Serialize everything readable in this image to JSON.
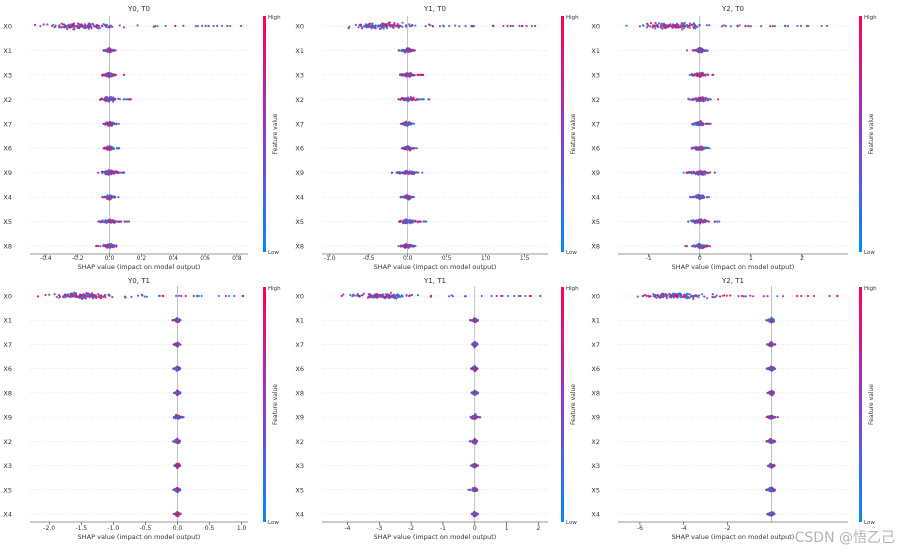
{
  "watermark": "CSDN @悟乙己",
  "colorbar": {
    "high": "High",
    "low": "Low",
    "label": "Feature value",
    "color_high": "#ff0052",
    "color_low": "#008bfb"
  },
  "chart_data": [
    {
      "type": "scatter",
      "title": "Y0, T0",
      "xlabel": "SHAP value (impact on model output)",
      "xlim": [
        -0.5,
        0.87
      ],
      "xticks": [
        -0.4,
        -0.2,
        0.0,
        0.2,
        0.4,
        0.6,
        0.8
      ],
      "features": [
        "X0",
        "X1",
        "X3",
        "X2",
        "X7",
        "X6",
        "X9",
        "X4",
        "X5",
        "X8"
      ],
      "ranges": [
        [
          -0.47,
          0.86
        ],
        [
          -0.04,
          0.04
        ],
        [
          -0.05,
          0.1
        ],
        [
          -0.06,
          0.14
        ],
        [
          -0.05,
          0.06
        ],
        [
          -0.05,
          0.06
        ],
        [
          -0.11,
          0.1
        ],
        [
          -0.05,
          0.06
        ],
        [
          -0.07,
          0.13
        ],
        [
          -0.09,
          0.05
        ]
      ]
    },
    {
      "type": "scatter",
      "title": "Y1, T0",
      "xlabel": "SHAP value (impact on model output)",
      "xlim": [
        -1.1,
        1.8
      ],
      "xticks": [
        -1.0,
        -0.5,
        0.0,
        0.5,
        1.0,
        1.5
      ],
      "features": [
        "X0",
        "X1",
        "X3",
        "X2",
        "X7",
        "X6",
        "X9",
        "X4",
        "X5",
        "X8"
      ],
      "ranges": [
        [
          -0.88,
          1.65
        ],
        [
          -0.12,
          0.1
        ],
        [
          -0.1,
          0.2
        ],
        [
          -0.12,
          0.3
        ],
        [
          -0.1,
          0.12
        ],
        [
          -0.1,
          0.12
        ],
        [
          -0.22,
          0.2
        ],
        [
          -0.1,
          0.1
        ],
        [
          -0.12,
          0.25
        ],
        [
          -0.15,
          0.1
        ]
      ]
    },
    {
      "type": "scatter",
      "title": "Y2, T0",
      "xlabel": "SHAP value (impact on model output)",
      "xlim": [
        -1.6,
        2.9
      ],
      "xticks": [
        -1,
        0,
        1,
        2
      ],
      "features": [
        "X0",
        "X1",
        "X3",
        "X2",
        "X7",
        "X6",
        "X9",
        "X4",
        "X5",
        "X8"
      ],
      "ranges": [
        [
          -1.45,
          2.55
        ],
        [
          -0.25,
          0.18
        ],
        [
          -0.2,
          0.32
        ],
        [
          -0.25,
          0.42
        ],
        [
          -0.2,
          0.22
        ],
        [
          -0.2,
          0.22
        ],
        [
          -0.35,
          0.32
        ],
        [
          -0.2,
          0.2
        ],
        [
          -0.25,
          0.38
        ],
        [
          -0.3,
          0.2
        ]
      ]
    },
    {
      "type": "scatter",
      "title": "Y0, T1",
      "xlabel": "SHAP value (impact on model output)",
      "xlim": [
        -2.3,
        1.1
      ],
      "xticks": [
        -2.0,
        -1.5,
        -1.0,
        -0.5,
        0.0,
        0.5,
        1.0
      ],
      "features": [
        "X0",
        "X1",
        "X7",
        "X6",
        "X8",
        "X9",
        "X2",
        "X3",
        "X5",
        "X4"
      ],
      "ranges": [
        [
          -2.2,
          1.05
        ],
        [
          -0.08,
          0.06
        ],
        [
          -0.06,
          0.05
        ],
        [
          -0.07,
          0.05
        ],
        [
          -0.06,
          0.05
        ],
        [
          -0.07,
          0.1
        ],
        [
          -0.08,
          0.05
        ],
        [
          -0.06,
          0.05
        ],
        [
          -0.08,
          0.05
        ],
        [
          -0.06,
          0.05
        ]
      ]
    },
    {
      "type": "scatter",
      "title": "Y1, T1",
      "xlabel": "SHAP value (impact on model output)",
      "xlim": [
        -4.8,
        2.3
      ],
      "xticks": [
        -4,
        -3,
        -2,
        -1,
        0,
        1,
        2
      ],
      "features": [
        "X0",
        "X1",
        "X7",
        "X6",
        "X8",
        "X9",
        "X2",
        "X3",
        "X5",
        "X4"
      ],
      "ranges": [
        [
          -4.3,
          2.1
        ],
        [
          -0.15,
          0.12
        ],
        [
          -0.12,
          0.1
        ],
        [
          -0.14,
          0.1
        ],
        [
          -0.12,
          0.1
        ],
        [
          -0.14,
          0.2
        ],
        [
          -0.16,
          0.1
        ],
        [
          -0.12,
          0.1
        ],
        [
          -0.2,
          0.1
        ],
        [
          -0.12,
          0.1
        ]
      ]
    },
    {
      "type": "scatter",
      "title": "Y2, T1",
      "xlabel": "SHAP value (impact on model output)",
      "xlim": [
        -7.0,
        3.5
      ],
      "xticks": [
        -6,
        -4,
        -2
      ],
      "features": [
        "X0",
        "X1",
        "X7",
        "X6",
        "X8",
        "X9",
        "X2",
        "X3",
        "X5",
        "X4"
      ],
      "ranges": [
        [
          -6.5,
          3.2
        ],
        [
          -0.25,
          0.2
        ],
        [
          -0.2,
          0.18
        ],
        [
          -0.22,
          0.18
        ],
        [
          -0.2,
          0.18
        ],
        [
          -0.22,
          0.3
        ],
        [
          -0.25,
          0.18
        ],
        [
          -0.2,
          0.18
        ],
        [
          -0.3,
          0.18
        ],
        [
          -0.2,
          0.18
        ]
      ]
    }
  ]
}
